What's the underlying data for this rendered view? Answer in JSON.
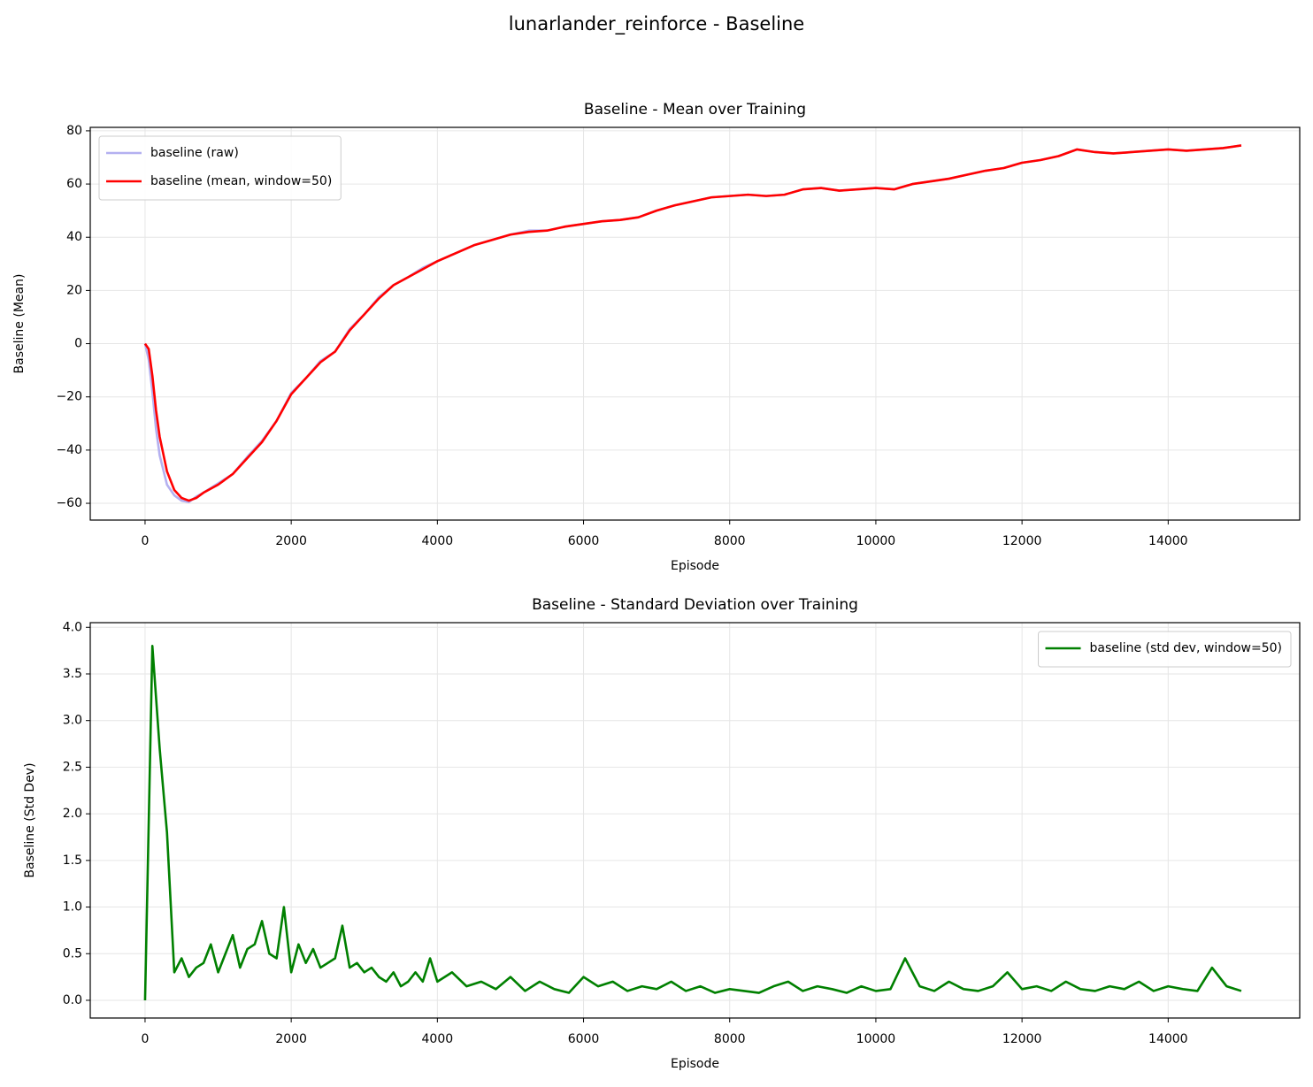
{
  "title": "lunarlander_reinforce - Baseline",
  "chart_data": [
    {
      "type": "line",
      "title": "Baseline - Mean over Training",
      "xlabel": "Episode",
      "ylabel": "Baseline (Mean)",
      "x": [
        0,
        50,
        100,
        150,
        200,
        300,
        400,
        500,
        600,
        700,
        800,
        1000,
        1200,
        1400,
        1600,
        1800,
        2000,
        2200,
        2400,
        2600,
        2800,
        3000,
        3200,
        3400,
        3600,
        3800,
        4000,
        4250,
        4500,
        4750,
        5000,
        5250,
        5500,
        5750,
        6000,
        6250,
        6500,
        6750,
        7000,
        7250,
        7500,
        7750,
        8000,
        8250,
        8500,
        8750,
        9000,
        9250,
        9500,
        9750,
        10000,
        10250,
        10500,
        10750,
        11000,
        11250,
        11500,
        11750,
        12000,
        12250,
        12500,
        12750,
        13000,
        13250,
        13500,
        13750,
        14000,
        14250,
        14500,
        14750,
        15000
      ],
      "series": [
        {
          "name": "baseline (raw)",
          "color": "#b4b0f0",
          "values": [
            0,
            -6,
            -18,
            -32,
            -42,
            -53,
            -57,
            -59,
            -59.5,
            -57.5,
            -56,
            -52.5,
            -49,
            -42.5,
            -36.5,
            -29,
            -18.5,
            -13,
            -6.5,
            -3,
            5.5,
            11,
            17.5,
            22,
            25,
            28.5,
            31,
            34,
            37,
            39,
            41,
            42.5,
            42.5,
            44,
            45,
            46,
            46.5,
            47.5,
            50,
            52,
            53.5,
            55,
            55.5,
            56,
            55.5,
            56,
            58,
            58.5,
            57.5,
            58,
            58.5,
            58,
            60,
            61,
            62,
            63.5,
            65,
            66,
            68,
            69,
            70.5,
            73,
            72,
            71.5,
            72,
            72.5,
            73,
            72.5,
            73,
            73.5,
            74.5
          ]
        },
        {
          "name": "baseline (mean, window=50)",
          "color": "#ff0000",
          "values": [
            0,
            -2,
            -12,
            -25,
            -35,
            -48,
            -55,
            -58,
            -59,
            -58,
            -56,
            -53,
            -49,
            -43,
            -37,
            -29,
            -19,
            -13,
            -7,
            -3,
            5,
            11,
            17,
            22,
            25,
            28,
            31,
            34,
            37,
            39,
            41,
            42,
            42.5,
            44,
            45,
            46,
            46.5,
            47.5,
            50,
            52,
            53.5,
            55,
            55.5,
            56,
            55.5,
            56,
            58,
            58.5,
            57.5,
            58,
            58.5,
            58,
            60,
            61,
            62,
            63.5,
            65,
            66,
            68,
            69,
            70.5,
            73,
            72,
            71.5,
            72,
            72.5,
            73,
            72.5,
            73,
            73.5,
            74.5
          ]
        }
      ],
      "xlim": [
        -750,
        15800
      ],
      "ylim": [
        -66.3,
        81.3
      ],
      "xticks": [
        0,
        2000,
        4000,
        6000,
        8000,
        10000,
        12000,
        14000
      ],
      "yticks": [
        {
          "value": -60,
          "label": "−60"
        },
        {
          "value": -40,
          "label": "−40"
        },
        {
          "value": -20,
          "label": "−20"
        },
        0,
        20,
        40,
        60,
        80
      ],
      "grid": true,
      "legend": "upper left"
    },
    {
      "type": "line",
      "title": "Baseline - Standard Deviation over Training",
      "xlabel": "Episode",
      "ylabel": "Baseline (Std Dev)",
      "x": [
        0,
        100,
        200,
        300,
        400,
        500,
        600,
        700,
        800,
        900,
        1000,
        1100,
        1200,
        1300,
        1400,
        1500,
        1600,
        1700,
        1800,
        1900,
        2000,
        2100,
        2200,
        2300,
        2400,
        2500,
        2600,
        2700,
        2800,
        2900,
        3000,
        3100,
        3200,
        3300,
        3400,
        3500,
        3600,
        3700,
        3800,
        3900,
        4000,
        4200,
        4400,
        4600,
        4800,
        5000,
        5200,
        5400,
        5600,
        5800,
        6000,
        6200,
        6400,
        6600,
        6800,
        7000,
        7200,
        7400,
        7600,
        7800,
        8000,
        8200,
        8400,
        8600,
        8800,
        9000,
        9200,
        9400,
        9600,
        9800,
        10000,
        10200,
        10400,
        10600,
        10800,
        11000,
        11200,
        11400,
        11600,
        11800,
        12000,
        12200,
        12400,
        12600,
        12800,
        13000,
        13200,
        13400,
        13600,
        13800,
        14000,
        14200,
        14400,
        14600,
        14800,
        15000
      ],
      "series": [
        {
          "name": "baseline (std dev, window=50)",
          "color": "#008000",
          "values": [
            0,
            3.8,
            2.7,
            1.8,
            0.3,
            0.45,
            0.25,
            0.35,
            0.4,
            0.6,
            0.3,
            0.5,
            0.7,
            0.35,
            0.55,
            0.6,
            0.85,
            0.5,
            0.45,
            1.0,
            0.3,
            0.6,
            0.4,
            0.55,
            0.35,
            0.4,
            0.45,
            0.8,
            0.35,
            0.4,
            0.3,
            0.35,
            0.25,
            0.2,
            0.3,
            0.15,
            0.2,
            0.3,
            0.2,
            0.45,
            0.2,
            0.3,
            0.15,
            0.2,
            0.12,
            0.25,
            0.1,
            0.2,
            0.12,
            0.08,
            0.25,
            0.15,
            0.2,
            0.1,
            0.15,
            0.12,
            0.2,
            0.1,
            0.15,
            0.08,
            0.12,
            0.1,
            0.08,
            0.15,
            0.2,
            0.1,
            0.15,
            0.12,
            0.08,
            0.15,
            0.1,
            0.12,
            0.45,
            0.15,
            0.1,
            0.2,
            0.12,
            0.1,
            0.15,
            0.3,
            0.12,
            0.15,
            0.1,
            0.2,
            0.12,
            0.1,
            0.15,
            0.12,
            0.2,
            0.1,
            0.15,
            0.12,
            0.1,
            0.35,
            0.15,
            0.1
          ]
        }
      ],
      "xlim": [
        -750,
        15800
      ],
      "ylim": [
        -0.19,
        4.05
      ],
      "xticks": [
        0,
        2000,
        4000,
        6000,
        8000,
        10000,
        12000,
        14000
      ],
      "yticks": [
        {
          "value": 0,
          "label": "0.0"
        },
        {
          "value": 0.5,
          "label": "0.5"
        },
        {
          "value": 1,
          "label": "1.0"
        },
        {
          "value": 1.5,
          "label": "1.5"
        },
        {
          "value": 2,
          "label": "2.0"
        },
        {
          "value": 2.5,
          "label": "2.5"
        },
        {
          "value": 3,
          "label": "3.0"
        },
        {
          "value": 3.5,
          "label": "3.5"
        },
        {
          "value": 4,
          "label": "4.0"
        }
      ],
      "grid": true,
      "legend": "upper right"
    }
  ]
}
